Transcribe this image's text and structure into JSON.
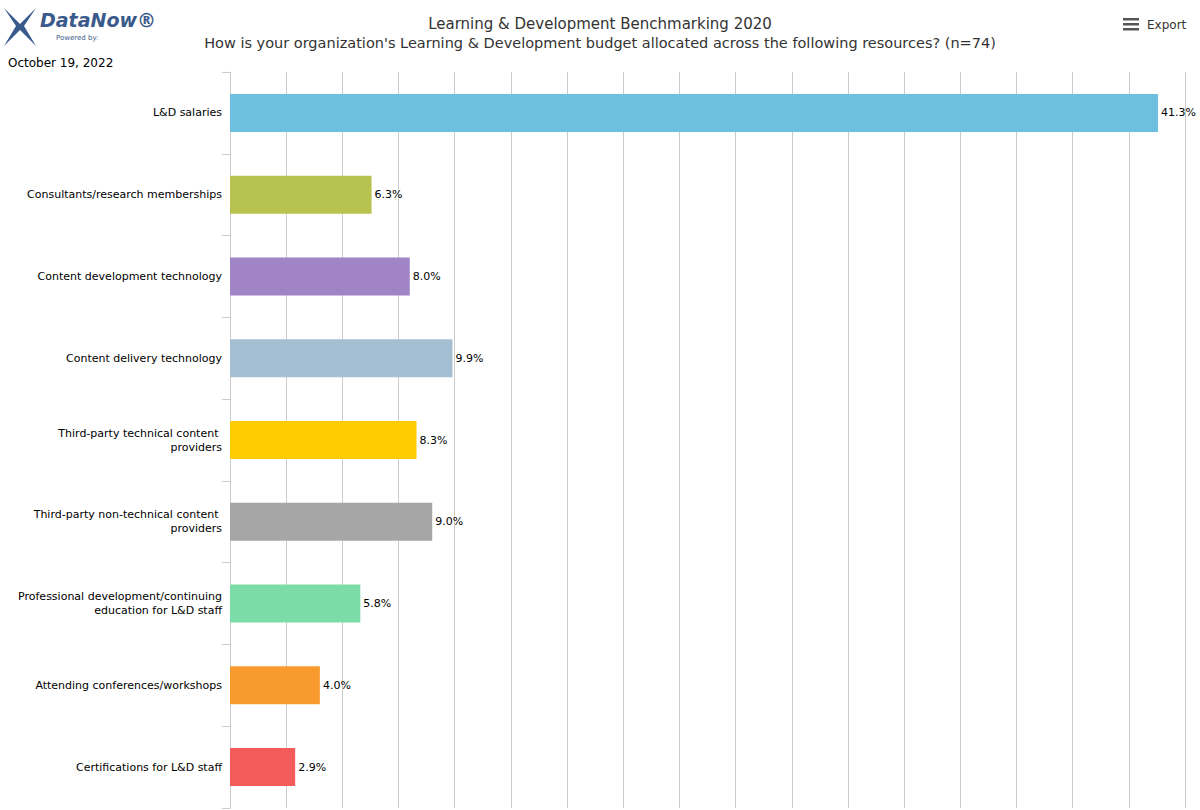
{
  "chart_data": {
    "type": "bar",
    "orientation": "horizontal",
    "title": "Learning & Development Benchmarking 2020",
    "subtitle": "How is your organization's Learning & Development budget allocated across the following resources? (n=74)",
    "annotations": [
      "DataNow®",
      "Powered by:",
      "October 19, 2022",
      "Export"
    ],
    "categories": [
      "L&D salaries",
      "Consultants/research memberships",
      "Content development technology",
      "Content delivery technology",
      "Third-party technical content providers",
      "Third-party non-technical content providers",
      "Professional development/continuing education for L&D staff",
      "Attending conferences/workshops",
      "Certifications for L&D staff"
    ],
    "values": [
      41.3,
      6.3,
      8.0,
      9.9,
      8.3,
      9.0,
      5.8,
      4.0,
      2.9
    ],
    "value_labels": [
      "41.3%",
      "6.3%",
      "8.0%",
      "9.9%",
      "8.3%",
      "9.0%",
      "5.8%",
      "4.0%",
      "2.9%"
    ],
    "colors": [
      "#6dc0e0",
      "#b8c24f",
      "#a084c6",
      "#a5bfd2",
      "#ffcc00",
      "#a6a6a6",
      "#7cdca7",
      "#f89a2d",
      "#f45b5b"
    ],
    "xlim": [
      0,
      42.5
    ],
    "xticks": [
      0,
      2.5,
      5,
      7.5,
      10,
      12.5,
      15,
      17.5,
      20,
      22.5,
      25,
      27.5,
      30,
      32.5,
      35,
      37.5,
      40,
      42.5
    ],
    "grid": true,
    "data_labels": true,
    "tick_labels": "y"
  }
}
